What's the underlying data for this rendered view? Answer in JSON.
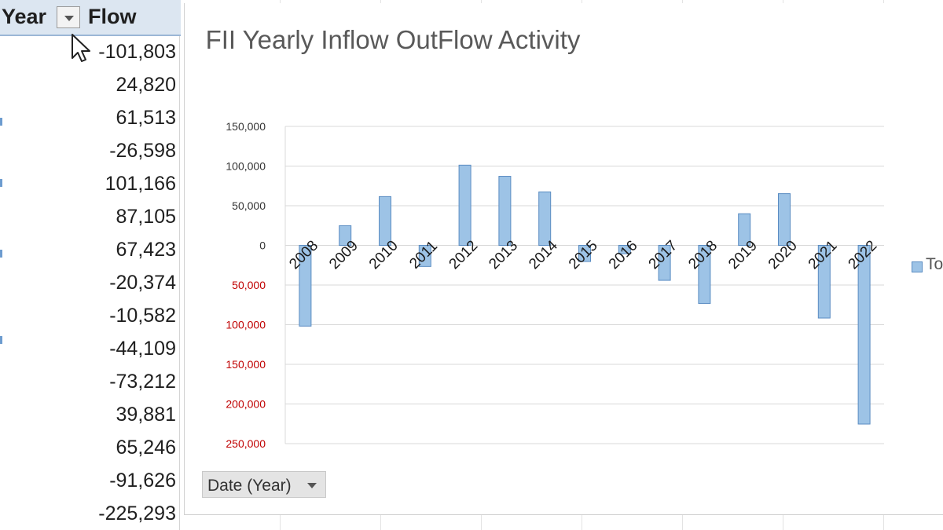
{
  "pivot": {
    "year_header": "Year",
    "flow_header": "Flow",
    "flow_values": [
      "-101,803",
      "24,820",
      "61,513",
      "-26,598",
      "101,166",
      "87,105",
      "67,423",
      "-20,374",
      "-10,582",
      "-44,109",
      "-73,212",
      "39,881",
      "65,246",
      "-91,626",
      "-225,293"
    ]
  },
  "chart_button": {
    "label": "Date (Year)"
  },
  "legend": {
    "label": "To"
  },
  "colors": {
    "bar": "#9dc3e6",
    "bar_border": "#5a8cc2",
    "negative_tick": "#c00000",
    "header_bg": "#dce6f1"
  },
  "chart_data": {
    "type": "bar",
    "title": "FII Yearly Inflow OutFlow Activity",
    "categories": [
      "2008",
      "2009",
      "2010",
      "2011",
      "2012",
      "2013",
      "2014",
      "2015",
      "2016",
      "2017",
      "2018",
      "2019",
      "2020",
      "2021",
      "2022"
    ],
    "series": [
      {
        "values": [
          -101803,
          24820,
          61513,
          -26598,
          101166,
          87105,
          67423,
          -20374,
          -10582,
          -44109,
          -73212,
          39881,
          65246,
          -91626,
          -225293
        ]
      }
    ],
    "y_ticks": [
      150000,
      100000,
      50000,
      0,
      -50000,
      -100000,
      -150000,
      -200000,
      -250000
    ],
    "y_tick_labels": [
      "150,000",
      "100,000",
      "50,000",
      "0",
      "50,000",
      "100,000",
      "150,000",
      "200,000",
      "250,000"
    ],
    "ylim": [
      -250000,
      150000
    ],
    "grid": true,
    "legend_position": "right"
  }
}
